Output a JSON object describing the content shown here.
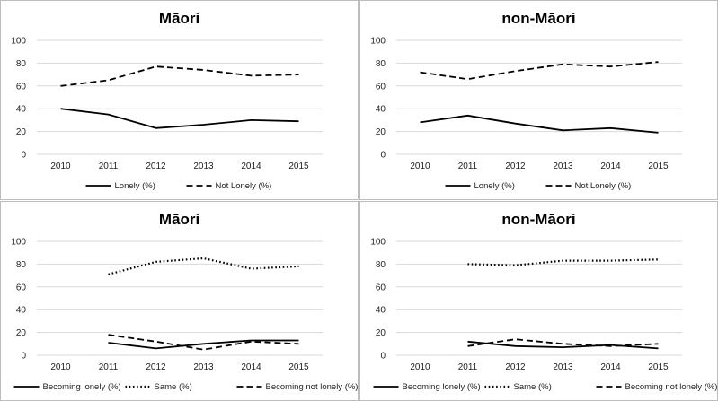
{
  "chart_data": [
    {
      "type": "line",
      "title": "Māori",
      "x": [
        "2010",
        "2011",
        "2012",
        "2013",
        "2014",
        "2015"
      ],
      "ylim": [
        0,
        100
      ],
      "yticks": [
        0,
        20,
        40,
        60,
        80,
        100
      ],
      "grid": true,
      "legend_position": "bottom",
      "series": [
        {
          "name": "Lonely (%)",
          "style": "solid",
          "values": [
            40,
            35,
            23,
            26,
            30,
            29
          ]
        },
        {
          "name": "Not Lonely (%)",
          "style": "dashed",
          "values": [
            60,
            65,
            77,
            74,
            69,
            70
          ]
        }
      ]
    },
    {
      "type": "line",
      "title": "non-Māori",
      "x": [
        "2010",
        "2011",
        "2012",
        "2013",
        "2014",
        "2015"
      ],
      "ylim": [
        0,
        100
      ],
      "yticks": [
        0,
        20,
        40,
        60,
        80,
        100
      ],
      "grid": true,
      "legend_position": "bottom",
      "series": [
        {
          "name": "Lonely (%)",
          "style": "solid",
          "values": [
            28,
            34,
            27,
            21,
            23,
            19
          ]
        },
        {
          "name": "Not Lonely (%)",
          "style": "dashed",
          "values": [
            72,
            66,
            73,
            79,
            77,
            81
          ]
        }
      ]
    },
    {
      "type": "line",
      "title": "Māori",
      "x": [
        "2010",
        "2011",
        "2012",
        "2013",
        "2014",
        "2015"
      ],
      "ylim": [
        0,
        100
      ],
      "yticks": [
        0,
        20,
        40,
        60,
        80,
        100
      ],
      "grid": true,
      "legend_position": "bottom",
      "series": [
        {
          "name": "Becoming lonely (%)",
          "style": "solid",
          "values": [
            null,
            11,
            6,
            10,
            13,
            13
          ]
        },
        {
          "name": "Same (%)",
          "style": "dotted",
          "values": [
            null,
            71,
            82,
            85,
            76,
            78
          ]
        },
        {
          "name": "Becoming not lonely (%)",
          "style": "dashed",
          "values": [
            null,
            18,
            12,
            5,
            12,
            10
          ]
        }
      ]
    },
    {
      "type": "line",
      "title": "non-Māori",
      "x": [
        "2010",
        "2011",
        "2012",
        "2013",
        "2014",
        "2015"
      ],
      "ylim": [
        0,
        100
      ],
      "yticks": [
        0,
        20,
        40,
        60,
        80,
        100
      ],
      "grid": true,
      "legend_position": "bottom",
      "series": [
        {
          "name": "Becoming lonely (%)",
          "style": "solid",
          "values": [
            null,
            12,
            8,
            7,
            9,
            6
          ]
        },
        {
          "name": "Same (%)",
          "style": "dotted",
          "values": [
            null,
            80,
            79,
            83,
            83,
            84
          ]
        },
        {
          "name": "Becoming not lonely (%)",
          "style": "dashed",
          "values": [
            null,
            8,
            14,
            10,
            8,
            10
          ]
        }
      ]
    }
  ]
}
